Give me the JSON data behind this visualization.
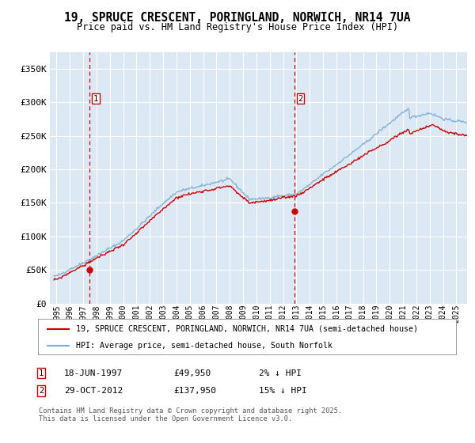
{
  "title_line1": "19, SPRUCE CRESCENT, PORINGLAND, NORWICH, NR14 7UA",
  "title_line2": "Price paid vs. HM Land Registry's House Price Index (HPI)",
  "legend_line1": "19, SPRUCE CRESCENT, PORINGLAND, NORWICH, NR14 7UA (semi-detached house)",
  "legend_line2": "HPI: Average price, semi-detached house, South Norfolk",
  "footnote": "Contains HM Land Registry data © Crown copyright and database right 2025.\nThis data is licensed under the Open Government Licence v3.0.",
  "sale1_date": 1997.46,
  "sale1_price": 49950,
  "sale2_date": 2012.83,
  "sale2_price": 137950,
  "hpi_color": "#7aaed4",
  "price_color": "#cc0000",
  "dashed_color": "#cc0000",
  "bg_color": "#dce9f5",
  "grid_color": "#ffffff",
  "ylim_min": 0,
  "ylim_max": 375000,
  "xlim_min": 1994.5,
  "xlim_max": 2025.8,
  "yticks": [
    0,
    50000,
    100000,
    150000,
    200000,
    250000,
    300000,
    350000
  ],
  "ytick_labels": [
    "£0",
    "£50K",
    "£100K",
    "£150K",
    "£200K",
    "£250K",
    "£300K",
    "£350K"
  ],
  "xticks": [
    1995,
    1996,
    1997,
    1998,
    1999,
    2000,
    2001,
    2002,
    2003,
    2004,
    2005,
    2006,
    2007,
    2008,
    2009,
    2010,
    2011,
    2012,
    2013,
    2014,
    2015,
    2016,
    2017,
    2018,
    2019,
    2020,
    2021,
    2022,
    2023,
    2024,
    2025
  ]
}
